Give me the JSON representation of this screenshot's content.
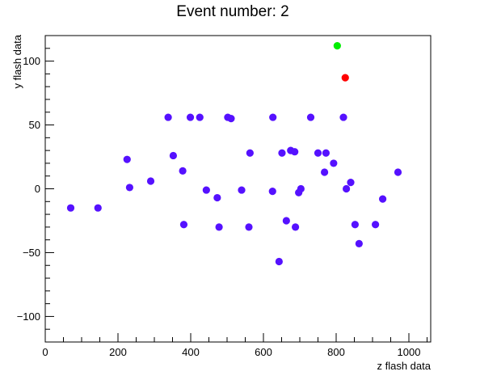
{
  "chart_data": {
    "type": "scatter",
    "title": "Event number: 2",
    "xlabel": "z flash data",
    "ylabel": "y flash data",
    "xlim": [
      0,
      1060
    ],
    "ylim": [
      -120,
      120
    ],
    "grid": false,
    "x_major_ticks": [
      0,
      200,
      400,
      600,
      800,
      1000
    ],
    "y_major_ticks": [
      -100,
      -50,
      0,
      50,
      100
    ],
    "x_tick_labels": [
      "0",
      "200",
      "400",
      "600",
      "800",
      "1000"
    ],
    "y_tick_labels": [
      "−100",
      "−50",
      "0",
      "50",
      "100"
    ],
    "series": [
      {
        "color": "#5511ff",
        "points": [
          [
            70,
            -15
          ],
          [
            145,
            -15
          ],
          [
            225,
            23
          ],
          [
            232,
            1
          ],
          [
            290,
            6
          ],
          [
            338,
            56
          ],
          [
            352,
            26
          ],
          [
            378,
            14
          ],
          [
            381,
            -28
          ],
          [
            399,
            56
          ],
          [
            425,
            56
          ],
          [
            443,
            -1
          ],
          [
            473,
            -7
          ],
          [
            478,
            -30
          ],
          [
            502,
            56
          ],
          [
            511,
            55
          ],
          [
            540,
            -1
          ],
          [
            560,
            -30
          ],
          [
            563,
            28
          ],
          [
            625,
            -2
          ],
          [
            626,
            56
          ],
          [
            643,
            -57
          ],
          [
            651,
            28
          ],
          [
            663,
            -25
          ],
          [
            675,
            30
          ],
          [
            686,
            29
          ],
          [
            688,
            -30
          ],
          [
            697,
            -3
          ],
          [
            703,
            0
          ],
          [
            730,
            56
          ],
          [
            750,
            28
          ],
          [
            768,
            13
          ],
          [
            772,
            28
          ],
          [
            793,
            20
          ],
          [
            820,
            56
          ],
          [
            828,
            0
          ],
          [
            840,
            5
          ],
          [
            852,
            -28
          ],
          [
            863,
            -43
          ],
          [
            908,
            -28
          ],
          [
            928,
            -8
          ],
          [
            970,
            13
          ]
        ]
      },
      {
        "color": "#ff0000",
        "points": [
          [
            825,
            87
          ]
        ]
      },
      {
        "color": "#00ee00",
        "points": [
          [
            803,
            112
          ]
        ]
      }
    ]
  }
}
